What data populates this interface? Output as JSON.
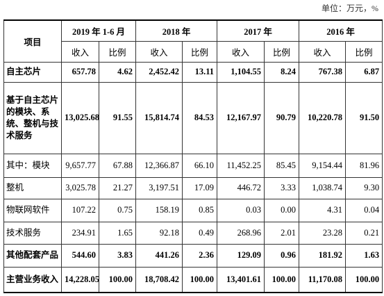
{
  "unit": "单位：万元，%",
  "table": {
    "header": {
      "item": "项目",
      "years": [
        "2019 年 1-6 月",
        "2018 年",
        "2017 年",
        "2016 年"
      ],
      "subheaders": [
        "收入",
        "比例",
        "收入",
        "比例",
        "收入",
        "比例",
        "收入",
        "比例"
      ]
    },
    "rows": [
      {
        "label": "自主芯片",
        "bold": true,
        "cells": [
          "657.78",
          "4.62",
          "2,452.42",
          "13.11",
          "1,104.55",
          "8.24",
          "767.38",
          "6.87"
        ]
      },
      {
        "label": "基于自主芯片的模块、系统、整机与技术服务",
        "bold": true,
        "cells": [
          "13,025.68",
          "91.55",
          "15,814.74",
          "84.53",
          "12,167.97",
          "90.79",
          "10,220.78",
          "91.50"
        ]
      },
      {
        "label": "其中：模块",
        "bold": false,
        "cells": [
          "9,657.77",
          "67.88",
          "12,366.87",
          "66.10",
          "11,452.25",
          "85.45",
          "9,154.44",
          "81.96"
        ]
      },
      {
        "label": "整机",
        "bold": false,
        "cells": [
          "3,025.78",
          "21.27",
          "3,197.51",
          "17.09",
          "446.72",
          "3.33",
          "1,038.74",
          "9.30"
        ]
      },
      {
        "label": "物联网软件",
        "bold": false,
        "cells": [
          "107.22",
          "0.75",
          "158.19",
          "0.85",
          "0.03",
          "0.00",
          "4.31",
          "0.04"
        ]
      },
      {
        "label": "技术服务",
        "bold": false,
        "cells": [
          "234.91",
          "1.65",
          "92.18",
          "0.49",
          "268.96",
          "2.01",
          "23.28",
          "0.21"
        ]
      },
      {
        "label": "其他配套产品",
        "bold": true,
        "cells": [
          "544.60",
          "3.83",
          "441.26",
          "2.36",
          "129.09",
          "0.96",
          "181.92",
          "1.63"
        ]
      },
      {
        "label": "主营业务收入",
        "bold": true,
        "cells": [
          "14,228.05",
          "100.00",
          "18,708.42",
          "100.00",
          "13,401.61",
          "100.00",
          "11,170.08",
          "100.00"
        ]
      }
    ]
  }
}
